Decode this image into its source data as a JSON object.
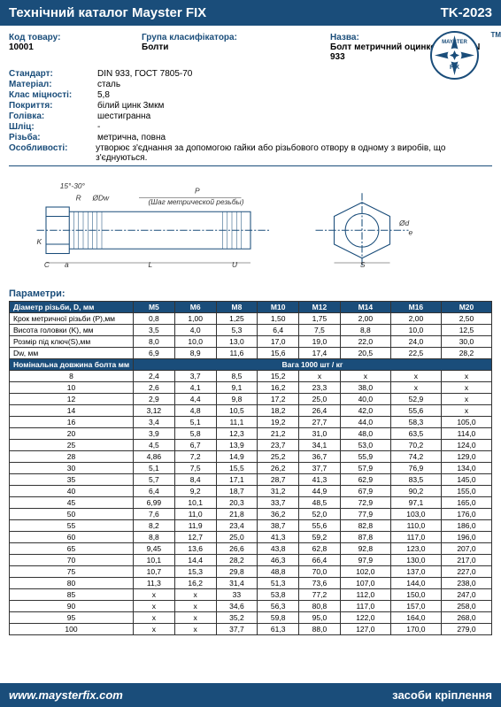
{
  "header": {
    "title": "Технічний каталог Mayster FIX",
    "code": "TK-2023"
  },
  "info": {
    "code_label": "Код товару:",
    "code_value": "10001",
    "group_label": "Група класифікатора:",
    "group_value": "Болти",
    "name_label": "Назва:",
    "name_value": "Болт метричний оцинкований DIN 933"
  },
  "logo": {
    "text1": "MAYSTER",
    "text2": "FIX",
    "tm": "TM"
  },
  "specs": [
    {
      "label": "Стандарт:",
      "value": "DIN 933, ГОСТ 7805-70"
    },
    {
      "label": "Матеріал:",
      "value": "сталь"
    },
    {
      "label": "Клас міцності:",
      "value": "5,8"
    },
    {
      "label": "Покриття:",
      "value": "білий цинк 3мкм"
    },
    {
      "label": "Голівка:",
      "value": "шестигранна"
    },
    {
      "label": "Шліц:",
      "value": "-"
    },
    {
      "label": "Різьба:",
      "value": "метрична, повна"
    },
    {
      "label": "Особливості:",
      "value": "утворює з'єднання за допомогою гайки або різьбового отвору в одному з виробів, що з'єднуються."
    }
  ],
  "diagram": {
    "angle": "15°-30°",
    "R": "R",
    "Dw": "ØDw",
    "K": "K",
    "C": "C",
    "a": "a",
    "L": "L",
    "U": "U",
    "P": "P",
    "thread_label": "(Шаг метрической резьбы)",
    "S": "S",
    "d": "Ød",
    "e": "e"
  },
  "params_title": "Параметри:",
  "table": {
    "header1": "Діаметр різьби, D, мм",
    "sizes": [
      "M5",
      "M6",
      "M8",
      "M10",
      "M12",
      "M14",
      "M16",
      "M20"
    ],
    "param_rows": [
      {
        "label": "Крок метричної різьби (P),мм",
        "v": [
          "0,8",
          "1,00",
          "1,25",
          "1,50",
          "1,75",
          "2,00",
          "2,00",
          "2,50"
        ]
      },
      {
        "label": "Висота головки (K), мм",
        "v": [
          "3,5",
          "4,0",
          "5,3",
          "6,4",
          "7,5",
          "8,8",
          "10,0",
          "12,5"
        ]
      },
      {
        "label": "Розмір під ключ(S),мм",
        "v": [
          "8,0",
          "10,0",
          "13,0",
          "17,0",
          "19,0",
          "22,0",
          "24,0",
          "30,0"
        ]
      },
      {
        "label": "Dw, мм",
        "v": [
          "6,9",
          "8,9",
          "11,6",
          "15,6",
          "17,4",
          "20,5",
          "22,5",
          "28,2"
        ]
      }
    ],
    "weight_header_left": "Номінальна довжина болта мм",
    "weight_header_right": "Вага 1000 шт / кг",
    "weight_rows": [
      {
        "l": "8",
        "v": [
          "2,4",
          "3,7",
          "8,5",
          "15,2",
          "x",
          "x",
          "x",
          "x"
        ]
      },
      {
        "l": "10",
        "v": [
          "2,6",
          "4,1",
          "9,1",
          "16,2",
          "23,3",
          "38,0",
          "x",
          "x"
        ]
      },
      {
        "l": "12",
        "v": [
          "2,9",
          "4,4",
          "9,8",
          "17,2",
          "25,0",
          "40,0",
          "52,9",
          "x"
        ]
      },
      {
        "l": "14",
        "v": [
          "3,12",
          "4,8",
          "10,5",
          "18,2",
          "26,4",
          "42,0",
          "55,6",
          "x"
        ]
      },
      {
        "l": "16",
        "v": [
          "3,4",
          "5,1",
          "11,1",
          "19,2",
          "27,7",
          "44,0",
          "58,3",
          "105,0"
        ]
      },
      {
        "l": "20",
        "v": [
          "3,9",
          "5,8",
          "12,3",
          "21,2",
          "31,0",
          "48,0",
          "63,5",
          "114,0"
        ]
      },
      {
        "l": "25",
        "v": [
          "4,5",
          "6,7",
          "13,9",
          "23,7",
          "34,1",
          "53,0",
          "70,2",
          "124,0"
        ]
      },
      {
        "l": "28",
        "v": [
          "4,86",
          "7,2",
          "14,9",
          "25,2",
          "36,7",
          "55,9",
          "74,2",
          "129,0"
        ]
      },
      {
        "l": "30",
        "v": [
          "5,1",
          "7,5",
          "15,5",
          "26,2",
          "37,7",
          "57,9",
          "76,9",
          "134,0"
        ]
      },
      {
        "l": "35",
        "v": [
          "5,7",
          "8,4",
          "17,1",
          "28,7",
          "41,3",
          "62,9",
          "83,5",
          "145,0"
        ]
      },
      {
        "l": "40",
        "v": [
          "6,4",
          "9,2",
          "18,7",
          "31,2",
          "44,9",
          "67,9",
          "90,2",
          "155,0"
        ]
      },
      {
        "l": "45",
        "v": [
          "6,99",
          "10,1",
          "20,3",
          "33,7",
          "48,5",
          "72,9",
          "97,1",
          "165,0"
        ]
      },
      {
        "l": "50",
        "v": [
          "7,6",
          "11,0",
          "21,8",
          "36,2",
          "52,0",
          "77,9",
          "103,0",
          "176,0"
        ]
      },
      {
        "l": "55",
        "v": [
          "8,2",
          "11,9",
          "23,4",
          "38,7",
          "55,6",
          "82,8",
          "110,0",
          "186,0"
        ]
      },
      {
        "l": "60",
        "v": [
          "8,8",
          "12,7",
          "25,0",
          "41,3",
          "59,2",
          "87,8",
          "117,0",
          "196,0"
        ]
      },
      {
        "l": "65",
        "v": [
          "9,45",
          "13,6",
          "26,6",
          "43,8",
          "62,8",
          "92,8",
          "123,0",
          "207,0"
        ]
      },
      {
        "l": "70",
        "v": [
          "10,1",
          "14,4",
          "28,2",
          "46,3",
          "66,4",
          "97,9",
          "130,0",
          "217,0"
        ]
      },
      {
        "l": "75",
        "v": [
          "10,7",
          "15,3",
          "29,8",
          "48,8",
          "70,0",
          "102,0",
          "137,0",
          "227,0"
        ]
      },
      {
        "l": "80",
        "v": [
          "11,3",
          "16,2",
          "31,4",
          "51,3",
          "73,6",
          "107,0",
          "144,0",
          "238,0"
        ]
      },
      {
        "l": "85",
        "v": [
          "x",
          "x",
          "33",
          "53,8",
          "77,2",
          "112,0",
          "150,0",
          "247,0"
        ]
      },
      {
        "l": "90",
        "v": [
          "x",
          "x",
          "34,6",
          "56,3",
          "80,8",
          "117,0",
          "157,0",
          "258,0"
        ]
      },
      {
        "l": "95",
        "v": [
          "x",
          "x",
          "35,2",
          "59,8",
          "95,0",
          "122,0",
          "164,0",
          "268,0"
        ]
      },
      {
        "l": "100",
        "v": [
          "x",
          "x",
          "37,7",
          "61,3",
          "88,0",
          "127,0",
          "170,0",
          "279,0"
        ]
      }
    ]
  },
  "footer": {
    "url": "www.maysterfix.com",
    "tagline": "засоби кріплення"
  }
}
